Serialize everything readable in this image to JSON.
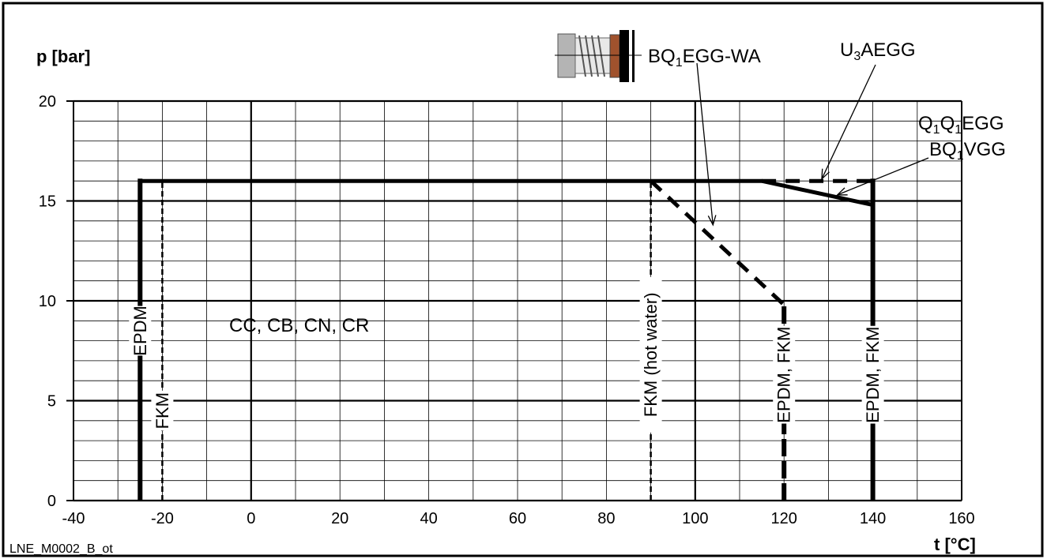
{
  "chart_data": {
    "type": "line",
    "xlabel": "t [°C]",
    "ylabel": "p [bar]",
    "xlim": [
      -40,
      160
    ],
    "ylim": [
      0,
      20
    ],
    "xticks": [
      -40,
      -20,
      0,
      20,
      40,
      60,
      80,
      100,
      120,
      140,
      160
    ],
    "yticks": [
      0,
      5,
      10,
      15,
      20
    ],
    "grid": true,
    "image_code": "LNE_M0002_B_ot",
    "pump_range_label": "CC, CB, CN, CR",
    "series": [
      {
        "name": "Q1Q1EGG / BQ1VGG",
        "line": "solid",
        "x": [
          -25,
          115,
          140
        ],
        "y": [
          16,
          16,
          14.8
        ]
      },
      {
        "name": "U3AEGG",
        "line": "dashed",
        "x": [
          115,
          140
        ],
        "y": [
          16,
          16
        ]
      },
      {
        "name": "BQ1EGG-WA",
        "line": "dashed",
        "x": [
          90,
          120
        ],
        "y": [
          16,
          9.8
        ]
      }
    ],
    "temperature_limits": [
      {
        "label": "EPDM",
        "x": -25,
        "y_top": 16,
        "style": "solid",
        "label_y": 8.5
      },
      {
        "label": "FKM",
        "x": -20,
        "y_top": 16,
        "style": "thin-dashed",
        "label_y": 4.5
      },
      {
        "label": "FKM (hot water)",
        "x": 90,
        "y_top": 16,
        "style": "thin-dashed",
        "label_y": 7.3
      },
      {
        "label": "EPDM, FKM",
        "x": 120,
        "y_top": 9.8,
        "style": "thick-dashed",
        "label_y": 6.3
      },
      {
        "label": "EPDM, FKM",
        "x": 140,
        "y_top": 16,
        "style": "solid",
        "label_y": 6.3
      }
    ],
    "annotations": [
      {
        "base": "BQ",
        "sub": "1",
        "rest": "EGG-WA",
        "points_to": [
          104,
          13.8
        ]
      },
      {
        "base": "U",
        "sub": "3",
        "rest": "AEGG",
        "points_to": [
          128.5,
          16.1
        ]
      },
      {
        "line1": {
          "base": "Q",
          "sub1": "1",
          "mid": "Q",
          "sub2": "1",
          "rest": "EGG"
        },
        "line2": {
          "base": "BQ",
          "sub": "1",
          "rest": "VGG"
        },
        "points_to": [
          132,
          15.3
        ]
      }
    ]
  }
}
